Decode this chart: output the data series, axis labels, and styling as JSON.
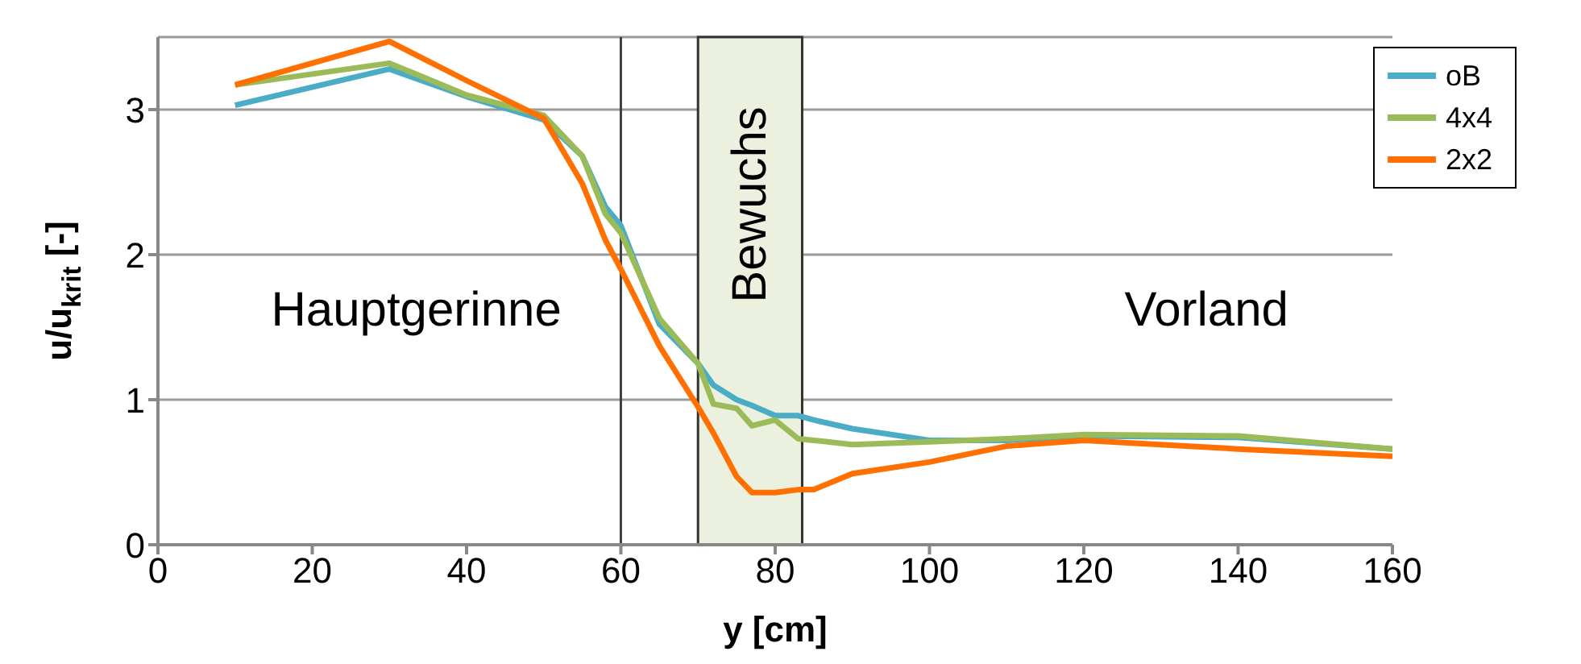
{
  "chart_data": {
    "type": "line",
    "xlabel": "y [cm]",
    "ylabel": "u/u$_{krit}$ [-]",
    "x": [
      10,
      30,
      40,
      50,
      55,
      58,
      60,
      65,
      70,
      72,
      75,
      77,
      80,
      83,
      85,
      90,
      100,
      110,
      120,
      140,
      160
    ],
    "series": [
      {
        "name": "oB",
        "color": "#4bacc6",
        "values": [
          3.03,
          3.28,
          3.09,
          2.93,
          2.68,
          2.33,
          2.2,
          1.52,
          1.25,
          1.1,
          1.0,
          0.96,
          0.89,
          0.89,
          0.86,
          0.8,
          0.72,
          0.72,
          0.75,
          0.74,
          0.66
        ]
      },
      {
        "name": "4x4",
        "color": "#9bbb59",
        "values": [
          3.17,
          3.32,
          3.1,
          2.96,
          2.68,
          2.28,
          2.15,
          1.56,
          1.25,
          0.97,
          0.94,
          0.82,
          0.86,
          0.73,
          0.72,
          0.69,
          0.71,
          0.73,
          0.76,
          0.75,
          0.66
        ]
      },
      {
        "name": "2x2",
        "color": "#ff7000",
        "values": [
          3.17,
          3.47,
          3.2,
          2.94,
          2.49,
          2.1,
          1.9,
          1.37,
          0.95,
          0.77,
          0.47,
          0.36,
          0.36,
          0.38,
          0.38,
          0.49,
          0.57,
          0.68,
          0.72,
          0.66,
          0.61
        ]
      }
    ],
    "xlim": [
      0,
      160
    ],
    "xticks": [
      0,
      20,
      40,
      60,
      80,
      100,
      120,
      140,
      160
    ],
    "ylim": [
      0,
      3.5
    ],
    "yticks": [
      0,
      1,
      2,
      3
    ],
    "grid": "y",
    "legend": "top right",
    "marker": "none",
    "line_style": "solid",
    "ref_lines": [
      {
        "axis": "x",
        "value": 60,
        "color": "#404040"
      }
    ],
    "bands": [
      {
        "axis": "x",
        "from": 70,
        "to": 83.5,
        "label": "Bewuchs",
        "color": "#ebf1de"
      }
    ],
    "annotations": [
      "Hauptgerinne",
      "Vorland"
    ]
  }
}
